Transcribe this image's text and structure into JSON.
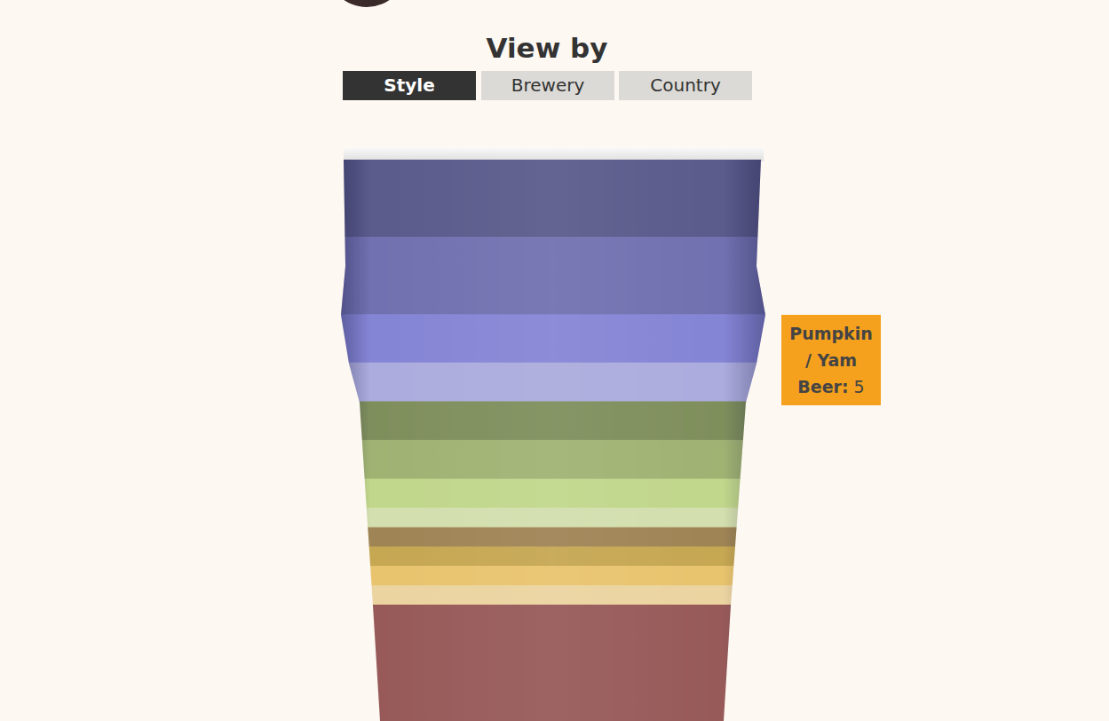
{
  "header": {
    "title": "View by",
    "buttons": [
      "Style",
      "Brewery",
      "Country"
    ],
    "active": "Style"
  },
  "chart_data": {
    "type": "bar",
    "stacked": true,
    "grid": false,
    "tick_labels": false,
    "categories": [
      null
    ],
    "ylim": [
      0,
      58
    ],
    "series": [
      {
        "name": null,
        "color": "#975a59",
        "values": [
          12
        ]
      },
      {
        "name": null,
        "color": "#ebd4a0",
        "values": [
          2
        ]
      },
      {
        "name": null,
        "color": "#e9c46e",
        "values": [
          2
        ]
      },
      {
        "name": null,
        "color": "#c6a752",
        "values": [
          2
        ]
      },
      {
        "name": null,
        "color": "#9f8455",
        "values": [
          2
        ]
      },
      {
        "name": null,
        "color": "#d3dfae",
        "values": [
          2
        ]
      },
      {
        "name": null,
        "color": "#c1d78b",
        "values": [
          3
        ]
      },
      {
        "name": null,
        "color": "#a0b373",
        "values": [
          4
        ]
      },
      {
        "name": null,
        "color": "#7f8f5c",
        "values": [
          4
        ]
      },
      {
        "name": null,
        "color": "#acacde",
        "values": [
          4
        ]
      },
      {
        "name": "Pumpkin / Yam Beer",
        "color": "#8585d6",
        "values": [
          5
        ],
        "tooltip": "Pumpkin / Yam Beer:"
      },
      {
        "name": null,
        "color": "#7171b1",
        "values": [
          8
        ]
      },
      {
        "name": null,
        "color": "#5b5b8c",
        "values": [
          8
        ]
      }
    ]
  }
}
